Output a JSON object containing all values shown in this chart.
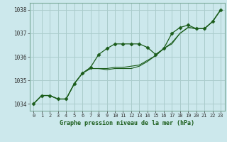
{
  "title": "Graphe pression niveau de la mer (hPa)",
  "background_color": "#cce8ec",
  "grid_color": "#aacccc",
  "line_color": "#1a5c1a",
  "xlim": [
    -0.5,
    23.5
  ],
  "ylim": [
    1033.7,
    1038.3
  ],
  "yticks": [
    1034,
    1035,
    1036,
    1037,
    1038
  ],
  "xticks": [
    0,
    1,
    2,
    3,
    4,
    5,
    6,
    7,
    8,
    9,
    10,
    11,
    12,
    13,
    14,
    15,
    16,
    17,
    18,
    19,
    20,
    21,
    22,
    23
  ],
  "series": [
    [
      1034.0,
      1034.35,
      1034.35,
      1034.2,
      1034.2,
      1034.85,
      1035.3,
      1035.55,
      1036.1,
      1036.35,
      1036.55,
      1036.55,
      1036.55,
      1036.55,
      1036.4,
      1036.1,
      1036.35,
      1037.0,
      1037.25,
      1037.35,
      1037.2,
      1037.2,
      1037.5,
      1038.0
    ],
    [
      1034.0,
      1034.35,
      1034.35,
      1034.2,
      1034.2,
      1034.85,
      1035.3,
      1035.5,
      1035.5,
      1035.45,
      1035.5,
      1035.5,
      1035.5,
      1035.6,
      1035.8,
      1036.05,
      1036.35,
      1036.55,
      1037.0,
      1037.25,
      1037.2,
      1037.2,
      1037.5,
      1038.0
    ],
    [
      1034.0,
      1034.35,
      1034.35,
      1034.2,
      1034.2,
      1034.85,
      1035.3,
      1035.5,
      1035.5,
      1035.5,
      1035.55,
      1035.55,
      1035.6,
      1035.65,
      1035.85,
      1036.05,
      1036.35,
      1036.6,
      1037.0,
      1037.25,
      1037.2,
      1037.2,
      1037.5,
      1038.0
    ]
  ],
  "xlabel_fontsize": 6,
  "tick_fontsize": 5,
  "ytick_fontsize": 5.5
}
